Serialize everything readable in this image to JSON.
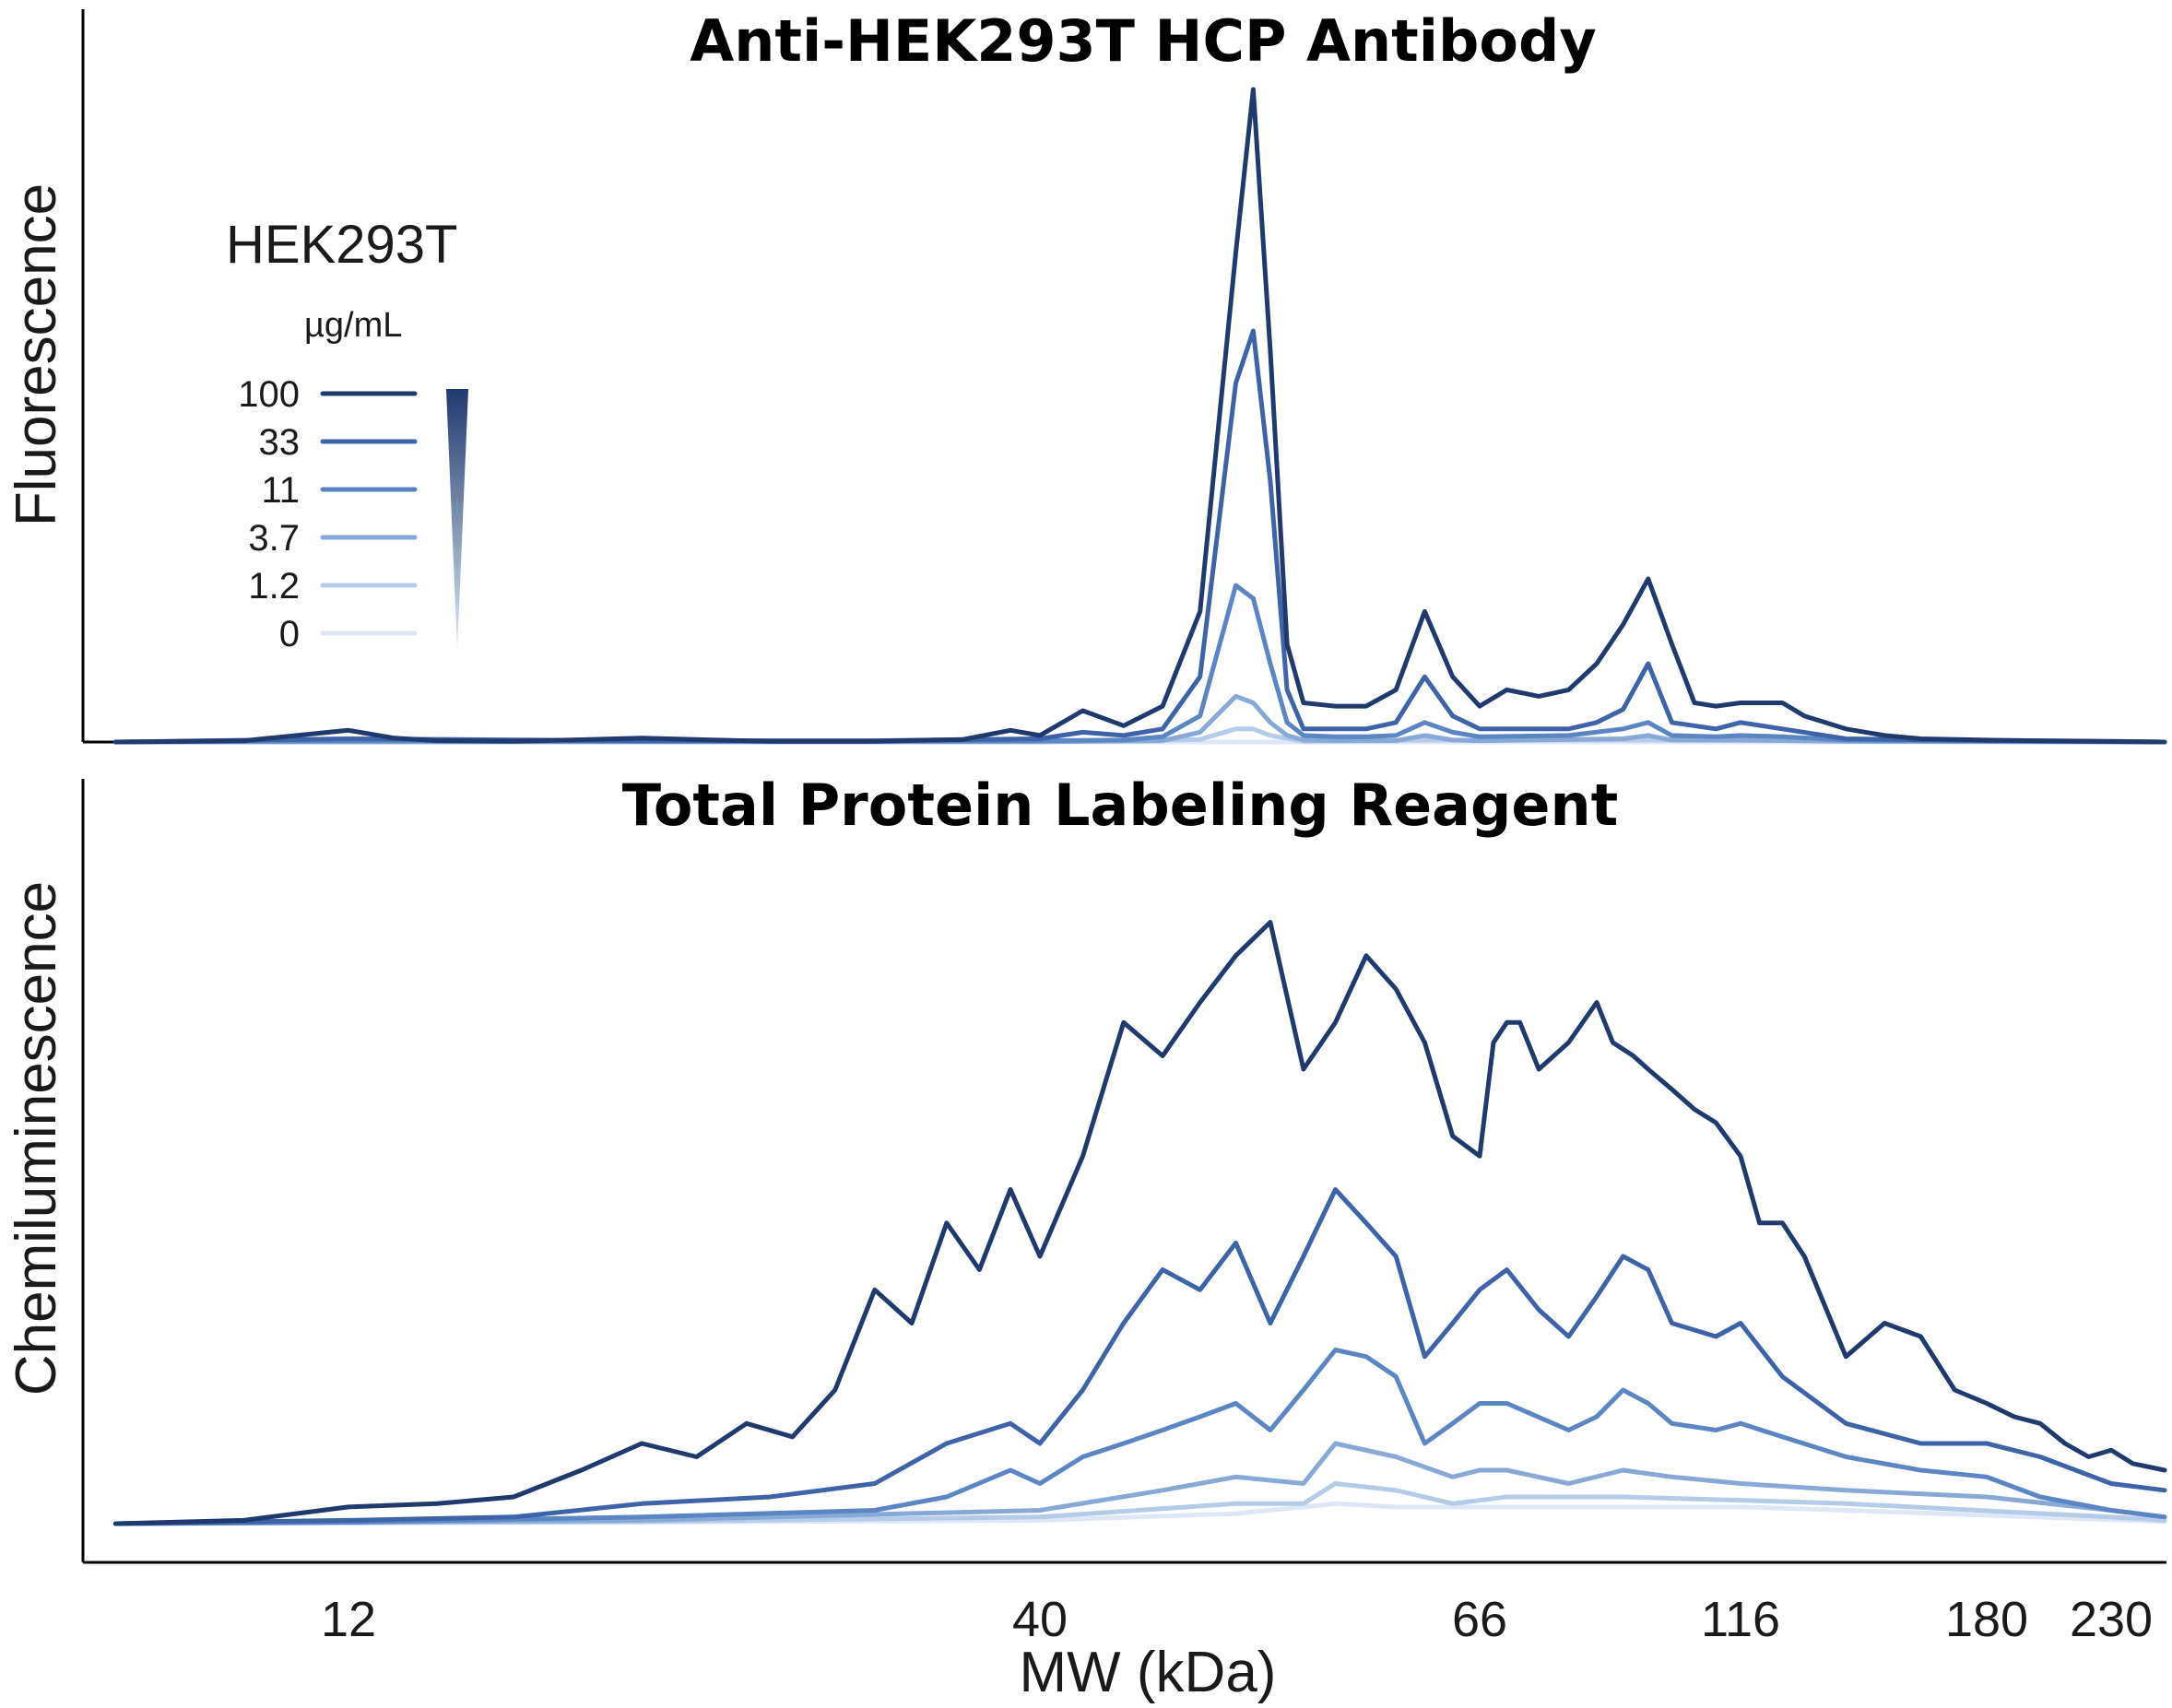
{
  "chart_data": [
    {
      "type": "line",
      "title": "Anti-HEK293T HCP Antibody",
      "ylabel": "Fluorescence",
      "xlabel": "",
      "x_scale": "log",
      "ylim": [
        0,
        100
      ],
      "series": [
        {
          "name": "100",
          "color": "#1f3a6e",
          "x": [
            8,
            10,
            12,
            13,
            14,
            16,
            20,
            25,
            30,
            35,
            38,
            40,
            42,
            44,
            46,
            48,
            50,
            51,
            52,
            53,
            54,
            56,
            58,
            60,
            62,
            64,
            66,
            70,
            75,
            80,
            85,
            90,
            95,
            100,
            105,
            110,
            116,
            125,
            130,
            140,
            150,
            160,
            180,
            200,
            230,
            260
          ],
          "y": [
            0,
            0.2,
            1.8,
            0.6,
            0.2,
            0.1,
            0.6,
            0.1,
            0.1,
            0.4,
            1.8,
            1.0,
            4.8,
            2.5,
            5.5,
            20,
            75,
            100,
            60,
            15,
            6,
            5.5,
            5.5,
            8,
            20,
            10,
            5.5,
            8,
            7,
            8,
            12,
            18,
            25,
            15,
            6,
            5.5,
            6,
            6,
            4,
            2,
            1,
            0.5,
            0.3,
            0.2,
            0.1,
            0
          ]
        },
        {
          "name": "33",
          "color": "#3d64a8",
          "x": [
            8,
            12,
            20,
            30,
            40,
            42,
            44,
            46,
            48,
            50,
            51,
            52,
            53,
            54,
            56,
            58,
            60,
            62,
            64,
            66,
            70,
            80,
            85,
            90,
            95,
            100,
            110,
            116,
            125,
            140,
            180,
            260
          ],
          "y": [
            0,
            0.5,
            0.2,
            0.2,
            0.5,
            1.5,
            1,
            2,
            10,
            55,
            63,
            40,
            8,
            2,
            2,
            2,
            3,
            10,
            4,
            2,
            2,
            2,
            3,
            5,
            12,
            3,
            2,
            3,
            2,
            0.5,
            0.2,
            0
          ]
        },
        {
          "name": "11",
          "color": "#5a86c4",
          "x": [
            8,
            12,
            20,
            30,
            40,
            44,
            46,
            48,
            50,
            51,
            52,
            53,
            54,
            56,
            58,
            60,
            62,
            64,
            66,
            80,
            90,
            95,
            100,
            110,
            116,
            125,
            140,
            260
          ],
          "y": [
            0,
            0.2,
            0.1,
            0.1,
            0.2,
            0.3,
            0.8,
            4,
            24,
            22,
            12,
            3,
            1,
            0.8,
            0.8,
            1,
            3,
            1.5,
            0.8,
            1,
            2,
            3,
            1,
            0.8,
            1,
            0.8,
            0.3,
            0
          ]
        },
        {
          "name": "3.7",
          "color": "#86a9d8",
          "x": [
            8,
            20,
            40,
            46,
            48,
            50,
            51,
            52,
            53,
            54,
            56,
            60,
            62,
            64,
            66,
            90,
            95,
            100,
            116,
            140,
            260
          ],
          "y": [
            0,
            0.05,
            0.05,
            0.2,
            1.5,
            7,
            6,
            3,
            1,
            0.3,
            0.2,
            0.2,
            1,
            0.3,
            0.2,
            0.5,
            1,
            0.3,
            0.3,
            0.1,
            0
          ]
        },
        {
          "name": "1.2",
          "color": "#b4cbea",
          "x": [
            8,
            40,
            48,
            50,
            51,
            52,
            54,
            62,
            95,
            260
          ],
          "y": [
            0,
            0,
            0.4,
            2,
            2,
            1,
            0.1,
            0.3,
            0.3,
            0
          ]
        },
        {
          "name": "0",
          "color": "#dde7f6",
          "x": [
            8,
            260
          ],
          "y": [
            0,
            0
          ]
        }
      ]
    },
    {
      "type": "line",
      "title": "Total Protein Labeling Reagent",
      "ylabel": "Chemiluminescence",
      "xlabel": "MW (kDa)",
      "x_scale": "log",
      "x_ticks": [
        "12",
        "40",
        "66",
        "116",
        "180",
        "230"
      ],
      "ylim": [
        0,
        100
      ],
      "series": [
        {
          "name": "100",
          "color": "#1f3a6e",
          "x": [
            8,
            10,
            12,
            14,
            16,
            18,
            20,
            22,
            24,
            26,
            28,
            30,
            32,
            34,
            36,
            38,
            40,
            42,
            44,
            46,
            48,
            50,
            52,
            54,
            56,
            58,
            60,
            62,
            64,
            66,
            68,
            70,
            72,
            75,
            80,
            85,
            88,
            92,
            95,
            100,
            105,
            110,
            116,
            120,
            125,
            130,
            140,
            150,
            160,
            170,
            180,
            190,
            200,
            210,
            220,
            230,
            240,
            260
          ],
          "y": [
            0,
            0.5,
            2.5,
            3,
            4,
            8,
            12,
            10,
            15,
            13,
            20,
            35,
            30,
            45,
            38,
            50,
            40,
            55,
            75,
            70,
            78,
            85,
            90,
            68,
            75,
            85,
            80,
            72,
            58,
            55,
            72,
            75,
            75,
            68,
            72,
            78,
            72,
            70,
            68,
            65,
            62,
            60,
            55,
            45,
            45,
            40,
            25,
            30,
            28,
            20,
            18,
            16,
            15,
            12,
            10,
            11,
            9,
            8
          ]
        },
        {
          "name": "33",
          "color": "#3d64a8",
          "x": [
            8,
            12,
            16,
            20,
            25,
            30,
            34,
            38,
            40,
            42,
            44,
            46,
            48,
            50,
            52,
            54,
            56,
            58,
            60,
            62,
            64,
            66,
            70,
            75,
            80,
            85,
            90,
            95,
            100,
            110,
            116,
            125,
            140,
            160,
            180,
            200,
            230,
            260
          ],
          "y": [
            0,
            0.5,
            1,
            3,
            4,
            6,
            12,
            15,
            12,
            20,
            30,
            38,
            35,
            42,
            30,
            40,
            50,
            45,
            40,
            25,
            30,
            35,
            38,
            32,
            28,
            34,
            40,
            38,
            30,
            28,
            30,
            22,
            15,
            12,
            12,
            10,
            6,
            5
          ]
        },
        {
          "name": "11",
          "color": "#5a86c4",
          "x": [
            8,
            12,
            20,
            30,
            34,
            38,
            40,
            42,
            44,
            46,
            48,
            50,
            52,
            54,
            56,
            58,
            60,
            62,
            64,
            66,
            70,
            80,
            85,
            90,
            95,
            100,
            110,
            116,
            125,
            140,
            160,
            180,
            200,
            230,
            260
          ],
          "y": [
            0,
            0.2,
            1,
            2,
            4,
            8,
            6,
            10,
            12,
            14,
            16,
            18,
            14,
            20,
            26,
            25,
            22,
            12,
            15,
            18,
            18,
            14,
            16,
            20,
            18,
            15,
            14,
            15,
            13,
            10,
            8,
            7,
            4,
            2,
            1
          ]
        },
        {
          "name": "3.7",
          "color": "#86a9d8",
          "x": [
            8,
            20,
            40,
            46,
            50,
            54,
            56,
            60,
            64,
            66,
            70,
            80,
            90,
            100,
            116,
            140,
            180,
            230,
            260
          ],
          "y": [
            0,
            0.5,
            2,
            5,
            7,
            6,
            12,
            10,
            7,
            8,
            8,
            6,
            8,
            7,
            6,
            5,
            4,
            2,
            1
          ]
        },
        {
          "name": "1.2",
          "color": "#b4cbea",
          "x": [
            8,
            20,
            40,
            50,
            54,
            56,
            60,
            64,
            70,
            90,
            116,
            140,
            230,
            260
          ],
          "y": [
            0,
            0.3,
            1,
            3,
            3,
            6,
            5,
            3,
            4,
            4,
            3.5,
            3,
            1,
            0.5
          ]
        },
        {
          "name": "0",
          "color": "#dde7f6",
          "x": [
            8,
            20,
            40,
            50,
            56,
            60,
            70,
            90,
            116,
            140,
            260
          ],
          "y": [
            0,
            0.2,
            0.5,
            1.5,
            3,
            2.5,
            2.5,
            2.5,
            2.5,
            2,
            0.3
          ]
        }
      ]
    }
  ],
  "legend": {
    "title": "HEK293T",
    "unit": "µg/mL",
    "items": [
      "100",
      "33",
      "11",
      "3.7",
      "1.2",
      "0"
    ]
  }
}
